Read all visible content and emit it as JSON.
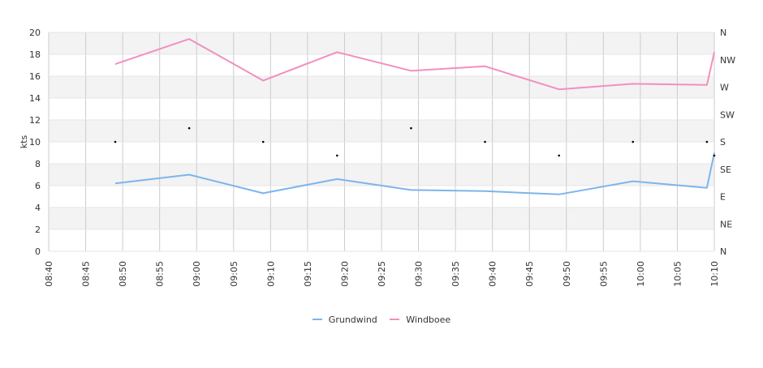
{
  "chart_data": {
    "type": "line",
    "ylabel": "kts",
    "ylim": [
      0,
      20
    ],
    "yticks": [
      "0",
      "2",
      "4",
      "6",
      "8",
      "10",
      "12",
      "14",
      "16",
      "18",
      "20"
    ],
    "y2ticks": [
      "N",
      "NE",
      "E",
      "SE",
      "S",
      "SW",
      "W",
      "NW",
      "N"
    ],
    "xticks": [
      "08:40",
      "08:45",
      "08:50",
      "08:55",
      "09:00",
      "09:05",
      "09:10",
      "09:15",
      "09:20",
      "09:25",
      "09:30",
      "09:35",
      "09:40",
      "09:45",
      "09:50",
      "09:55",
      "10:00",
      "10:05",
      "10:10"
    ],
    "xrange": [
      "08:40",
      "10:10"
    ],
    "grid": true,
    "legend_position": "bottom",
    "series": [
      {
        "name": "Grundwind",
        "color": "#7cb5ec",
        "points": [
          {
            "x": "08:49",
            "y": 6.2
          },
          {
            "x": "08:59",
            "y": 7.0
          },
          {
            "x": "09:09",
            "y": 5.3
          },
          {
            "x": "09:19",
            "y": 6.6
          },
          {
            "x": "09:29",
            "y": 5.6
          },
          {
            "x": "09:39",
            "y": 5.5
          },
          {
            "x": "09:49",
            "y": 5.2
          },
          {
            "x": "09:59",
            "y": 6.4
          },
          {
            "x": "10:09",
            "y": 5.8
          },
          {
            "x": "10:10",
            "y": 9.0
          }
        ]
      },
      {
        "name": "Windboee",
        "color": "#f28fbf",
        "points": [
          {
            "x": "08:49",
            "y": 17.1
          },
          {
            "x": "08:59",
            "y": 19.4
          },
          {
            "x": "09:09",
            "y": 15.6
          },
          {
            "x": "09:19",
            "y": 18.2
          },
          {
            "x": "09:29",
            "y": 16.5
          },
          {
            "x": "09:39",
            "y": 16.9
          },
          {
            "x": "09:49",
            "y": 14.8
          },
          {
            "x": "09:59",
            "y": 15.3
          },
          {
            "x": "10:09",
            "y": 15.2
          },
          {
            "x": "10:10",
            "y": 18.2
          }
        ]
      }
    ],
    "direction_points": [
      {
        "x": "08:49",
        "dir": "S"
      },
      {
        "x": "08:59",
        "dir": "SSW"
      },
      {
        "x": "09:09",
        "dir": "S"
      },
      {
        "x": "09:19",
        "dir": "SSE"
      },
      {
        "x": "09:29",
        "dir": "SSW"
      },
      {
        "x": "09:39",
        "dir": "S"
      },
      {
        "x": "09:49",
        "dir": "SSE"
      },
      {
        "x": "09:59",
        "dir": "S"
      },
      {
        "x": "10:09",
        "dir": "S"
      },
      {
        "x": "10:10",
        "dir": "SSE"
      }
    ]
  }
}
